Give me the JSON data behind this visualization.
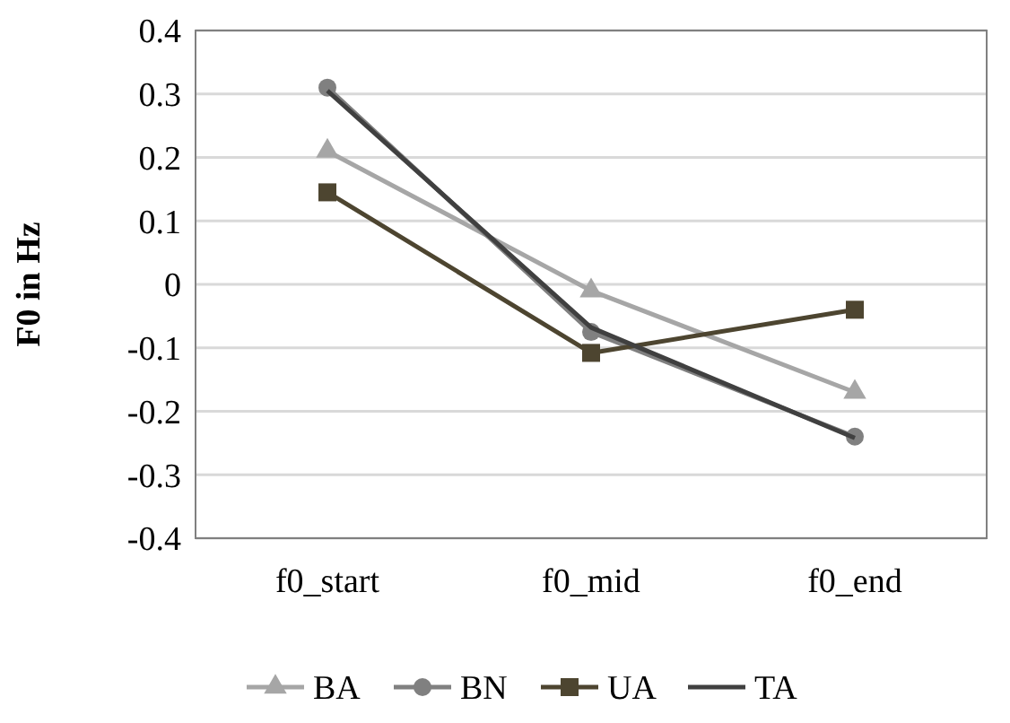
{
  "chart_data": {
    "type": "line",
    "ylabel": "F0 in Hz",
    "categories": [
      "f0_start",
      "f0_mid",
      "f0_end"
    ],
    "series": [
      {
        "name": "BA",
        "color": "#a6a6a6",
        "marker": "triangle",
        "values": [
          0.21,
          -0.01,
          -0.17
        ]
      },
      {
        "name": "BN",
        "color": "#808080",
        "marker": "circle",
        "values": [
          0.31,
          -0.075,
          -0.24
        ]
      },
      {
        "name": "UA",
        "color": "#4d4530",
        "marker": "square",
        "values": [
          0.145,
          -0.108,
          -0.04
        ]
      },
      {
        "name": "TA",
        "color": "#404040",
        "marker": "none",
        "values": [
          0.305,
          -0.068,
          -0.242
        ]
      }
    ],
    "ylim": [
      -0.4,
      0.4
    ],
    "yticks": [
      -0.4,
      -0.3,
      -0.2,
      -0.1,
      0,
      0.1,
      0.2,
      0.3,
      0.4
    ],
    "grid": "y",
    "legend": "bottom"
  }
}
